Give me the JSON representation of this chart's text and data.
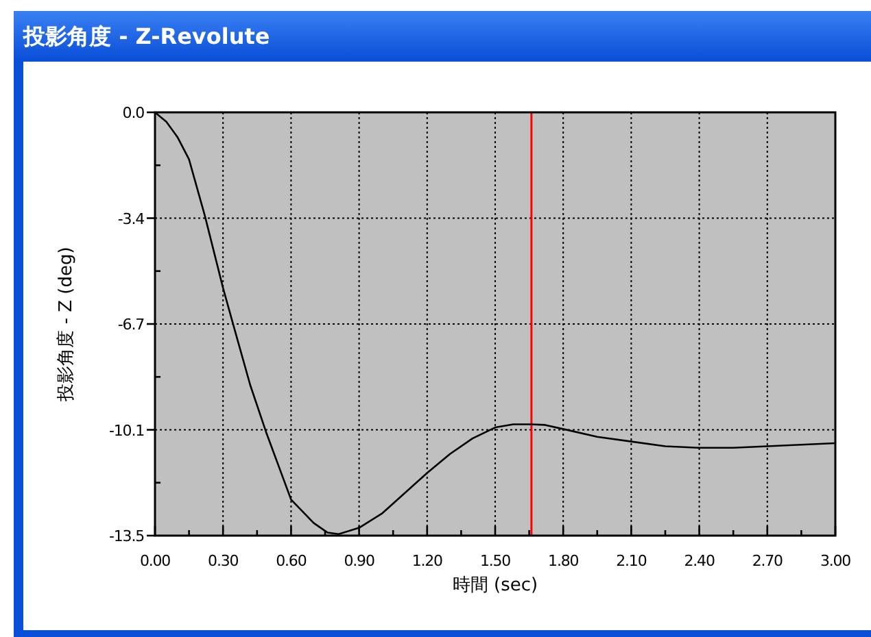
{
  "chart_data": {
    "type": "line",
    "title": "投影角度 - Z-Revolute",
    "xlabel": "時間 (sec)",
    "ylabel": "投影角度 - Z (deg)",
    "x": [
      0,
      0.05,
      0.1,
      0.15,
      0.22,
      0.3,
      0.35,
      0.42,
      0.49,
      0.6,
      0.7,
      0.76,
      0.81,
      0.9,
      1.0,
      1.1,
      1.2,
      1.3,
      1.4,
      1.5,
      1.58,
      1.66,
      1.72,
      1.8,
      1.95,
      2.1,
      2.25,
      2.4,
      2.55,
      2.7,
      2.85,
      3.0
    ],
    "series": [
      {
        "color": "#000000",
        "values": [
          0,
          -0.3,
          -0.8,
          -1.5,
          -3.3,
          -5.6,
          -6.9,
          -8.7,
          -10.2,
          -12.35,
          -13.1,
          -13.4,
          -13.45,
          -13.25,
          -12.8,
          -12.15,
          -11.5,
          -10.9,
          -10.4,
          -10.05,
          -9.95,
          -9.95,
          -9.97,
          -10.1,
          -10.35,
          -10.5,
          -10.65,
          -10.7,
          -10.7,
          -10.65,
          -10.6,
          -10.55
        ]
      }
    ],
    "xlim": [
      0,
      3
    ],
    "ylim": [
      -13.5,
      0
    ],
    "xticks": [
      {
        "value": 0,
        "label": "0.00"
      },
      {
        "value": 0.15,
        "label": null
      },
      {
        "value": 0.3,
        "label": "0.30"
      },
      {
        "value": 0.45,
        "label": null
      },
      {
        "value": 0.6,
        "label": "0.60"
      },
      {
        "value": 0.75,
        "label": null
      },
      {
        "value": 0.9,
        "label": "0.90"
      },
      {
        "value": 1.05,
        "label": null
      },
      {
        "value": 1.2,
        "label": "1.20"
      },
      {
        "value": 1.35,
        "label": null
      },
      {
        "value": 1.5,
        "label": "1.50"
      },
      {
        "value": 1.65,
        "label": null
      },
      {
        "value": 1.8,
        "label": "1.80"
      },
      {
        "value": 1.95,
        "label": null
      },
      {
        "value": 2.1,
        "label": "2.10"
      },
      {
        "value": 2.25,
        "label": null
      },
      {
        "value": 2.4,
        "label": "2.40"
      },
      {
        "value": 2.55,
        "label": null
      },
      {
        "value": 2.7,
        "label": "2.70"
      },
      {
        "value": 2.85,
        "label": null
      },
      {
        "value": 3,
        "label": "3.00"
      }
    ],
    "yticks": [
      {
        "value": 0,
        "label": "0.0"
      },
      {
        "value": -1.6875,
        "label": null
      },
      {
        "value": -3.375,
        "label": "-3.4"
      },
      {
        "value": -5.0625,
        "label": null
      },
      {
        "value": -6.75,
        "label": "-6.7"
      },
      {
        "value": -8.4375,
        "label": null
      },
      {
        "value": -10.125,
        "label": "-10.1"
      },
      {
        "value": -11.8125,
        "label": null
      },
      {
        "value": -13.5,
        "label": "-13.5"
      }
    ],
    "grid": true,
    "ref_lines": [
      {
        "axis": "x",
        "value": 1.66,
        "color": "#ff0000"
      }
    ]
  }
}
